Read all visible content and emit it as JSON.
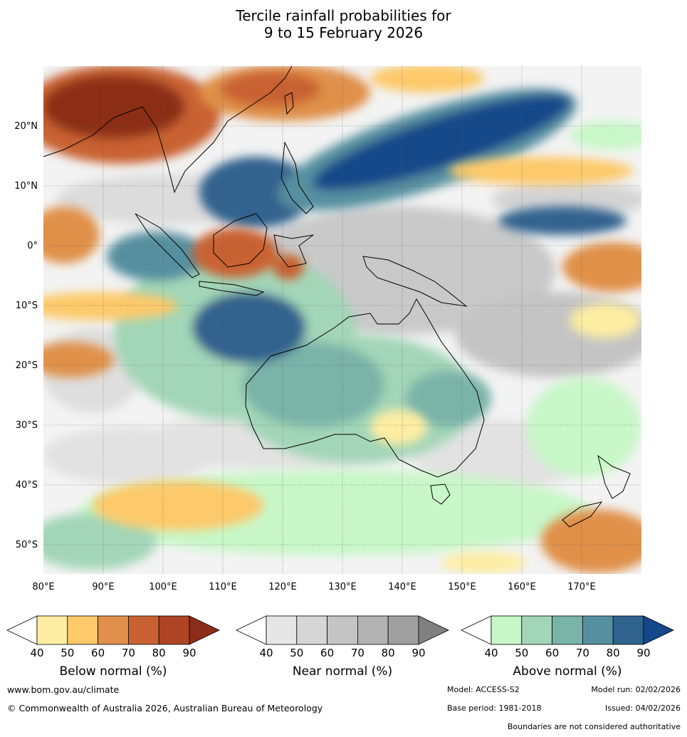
{
  "title": {
    "line1": "Tercile rainfall probabilities for",
    "line2": "9 to 15 February 2026"
  },
  "map": {
    "lon_ticks": [
      "80°E",
      "90°E",
      "100°E",
      "110°E",
      "120°E",
      "130°E",
      "140°E",
      "150°E",
      "160°E",
      "170°E"
    ],
    "lat_ticks": [
      "20°N",
      "10°N",
      "0°",
      "10°S",
      "20°S",
      "30°S",
      "40°S",
      "50°S"
    ],
    "lon_range": [
      80,
      180
    ],
    "lat_range": [
      -55,
      30
    ]
  },
  "colorbars": [
    {
      "label": "Below normal (%)",
      "ticks": [
        "40",
        "50",
        "60",
        "70",
        "80",
        "90"
      ],
      "colors": [
        "#ffffff",
        "#fdeda2",
        "#fdc96a",
        "#e0904a",
        "#c96233",
        "#ad4426",
        "#8c2d19"
      ]
    },
    {
      "label": "Near normal (%)",
      "ticks": [
        "40",
        "50",
        "60",
        "70",
        "80",
        "90"
      ],
      "colors": [
        "#ffffff",
        "#e6e6e6",
        "#d6d6d6",
        "#c4c4c4",
        "#b3b3b3",
        "#a0a0a0",
        "#808080"
      ]
    },
    {
      "label": "Above normal (%)",
      "ticks": [
        "40",
        "50",
        "60",
        "70",
        "80",
        "90"
      ],
      "colors": [
        "#ffffff",
        "#c8f7c8",
        "#a3d6b8",
        "#7ab3a8",
        "#5690a0",
        "#30628e",
        "#14488a"
      ]
    }
  ],
  "footer": {
    "url": "www.bom.gov.au/climate",
    "copyright": "© Commonwealth of Australia 2026, Australian Bureau of Meteorology",
    "model": "Model: ACCESS-S2",
    "model_run": "Model run: 02/02/2026",
    "base_period": "Base period: 1981-2018",
    "issued": "Issued: 04/02/2026",
    "disclaimer": "Boundaries are not considered authoritative"
  }
}
